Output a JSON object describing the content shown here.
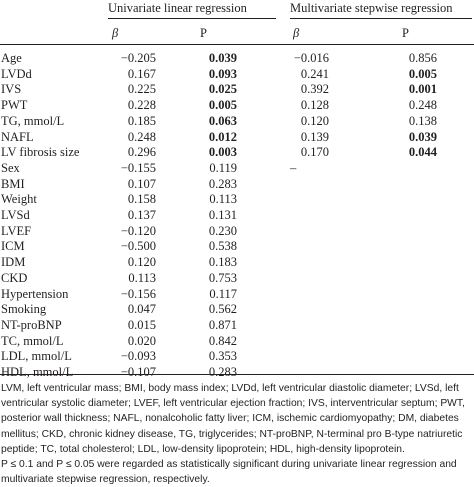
{
  "table": {
    "group_headers": [
      "Univariate linear regression",
      "Multivariate stepwise regression"
    ],
    "sub_headers": [
      "β",
      "P",
      "β",
      "P"
    ],
    "rows": [
      {
        "variable": "Age",
        "uni_beta": "−0.205",
        "uni_p": "0.039",
        "multi_beta": "−0.016",
        "multi_p": "0.856",
        "bold": [
          "uni_p"
        ]
      },
      {
        "variable": "LVDd",
        "uni_beta": "0.167",
        "uni_p": "0.093",
        "multi_beta": "0.241",
        "multi_p": "0.005",
        "bold": [
          "uni_p",
          "multi_p"
        ]
      },
      {
        "variable": "IVS",
        "uni_beta": "0.225",
        "uni_p": "0.025",
        "multi_beta": "0.392",
        "multi_p": "0.001",
        "bold": [
          "uni_p",
          "multi_p"
        ]
      },
      {
        "variable": "PWT",
        "uni_beta": "0.228",
        "uni_p": "0.005",
        "multi_beta": "0.128",
        "multi_p": "0.248",
        "bold": [
          "uni_p"
        ]
      },
      {
        "variable": "TG, mmol/L",
        "uni_beta": "0.185",
        "uni_p": "0.063",
        "multi_beta": "0.120",
        "multi_p": "0.138",
        "bold": [
          "uni_p"
        ]
      },
      {
        "variable": "NAFL",
        "uni_beta": "0.248",
        "uni_p": "0.012",
        "multi_beta": "0.139",
        "multi_p": "0.039",
        "bold": [
          "uni_p",
          "multi_p"
        ]
      },
      {
        "variable": "LV fibrosis size",
        "uni_beta": "0.296",
        "uni_p": "0.003",
        "multi_beta": "0.170",
        "multi_p": "0.044",
        "bold": [
          "uni_p",
          "multi_p"
        ]
      },
      {
        "variable": "Sex",
        "uni_beta": "−0.155",
        "uni_p": "0.119",
        "multi_beta": "–"
      },
      {
        "variable": "BMI",
        "uni_beta": "0.107",
        "uni_p": "0.283"
      },
      {
        "variable": "Weight",
        "uni_beta": "0.158",
        "uni_p": "0.113"
      },
      {
        "variable": "LVSd",
        "uni_beta": "0.137",
        "uni_p": "0.131"
      },
      {
        "variable": "LVEF",
        "uni_beta": "−0.120",
        "uni_p": "0.230"
      },
      {
        "variable": "ICM",
        "uni_beta": "−0.500",
        "uni_p": "0.538"
      },
      {
        "variable": "IDM",
        "uni_beta": "0.120",
        "uni_p": "0.183"
      },
      {
        "variable": "CKD",
        "uni_beta": "0.113",
        "uni_p": "0.753"
      },
      {
        "variable": "Hypertension",
        "uni_beta": "−0.156",
        "uni_p": "0.117"
      },
      {
        "variable": "Smoking",
        "uni_beta": "0.047",
        "uni_p": "0.562"
      },
      {
        "variable": "NT-proBNP",
        "uni_beta": "0.015",
        "uni_p": "0.871"
      },
      {
        "variable": "TC, mmol/L",
        "uni_beta": "0.020",
        "uni_p": "0.842"
      },
      {
        "variable": "LDL, mmol/L",
        "uni_beta": "−0.093",
        "uni_p": "0.353"
      },
      {
        "variable": "HDL, mmol/L",
        "uni_beta": "−0.107",
        "uni_p": "0.283"
      }
    ]
  },
  "footnotes": [
    "LVM, left ventricular mass; BMI, body mass index; LVDd, left ventricular diastolic diameter; LVSd, left ventricular systolic diameter; LVEF, left ventricular ejection fraction; IVS, interventricular septum; PWT, posterior wall thickness; NAFL, nonalcoholic fatty liver; ICM, ischemic cardiomyopathy; DM, diabetes mellitus; CKD, chronic kidney disease, TG, triglycerides; NT-proBNP, N-terminal pro B-type natriuretic peptide; TC, total cholesterol; LDL, low-density lipoprotein; HDL, high-density lipoprotein.",
    "P ≤ 0.1 and P ≤ 0.05 were regarded as statistically significant during univariate linear regression and multivariate stepwise regression, respectively."
  ]
}
